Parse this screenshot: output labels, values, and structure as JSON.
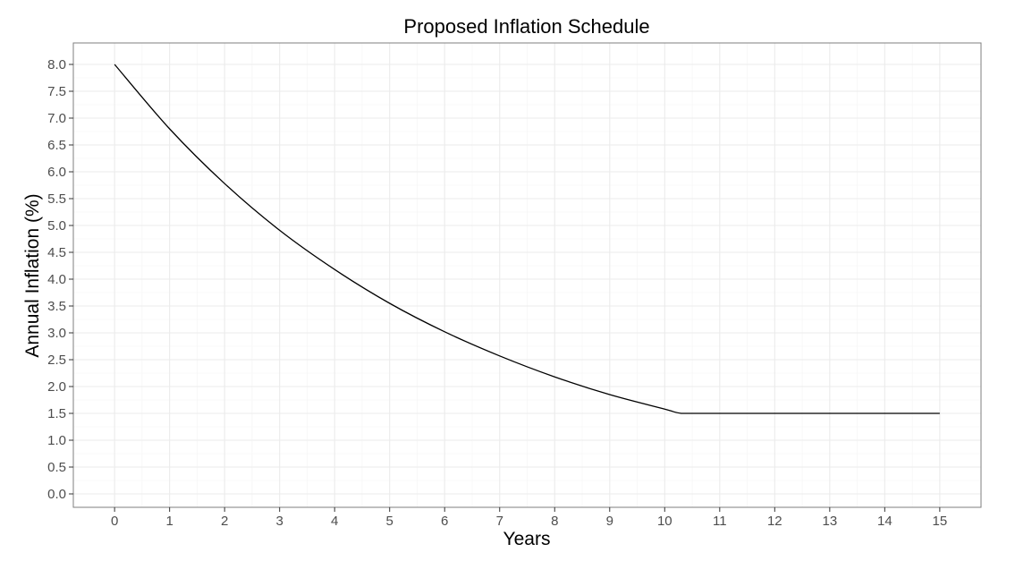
{
  "chart_data": {
    "type": "line",
    "title": "Proposed Inflation Schedule",
    "xlabel": "Years",
    "ylabel": "Annual Inflation (%)",
    "xlim": [
      -0.75,
      15.75
    ],
    "ylim": [
      -0.25,
      8.4
    ],
    "x_ticks": [
      0,
      1,
      2,
      3,
      4,
      5,
      6,
      7,
      8,
      9,
      10,
      11,
      12,
      13,
      14,
      15
    ],
    "x_tick_labels": [
      "0",
      "1",
      "2",
      "3",
      "4",
      "5",
      "6",
      "7",
      "8",
      "9",
      "10",
      "11",
      "12",
      "13",
      "14",
      "15"
    ],
    "y_ticks": [
      0,
      0.5,
      1,
      1.5,
      2,
      2.5,
      3,
      3.5,
      4,
      4.5,
      5,
      5.5,
      6,
      6.5,
      7,
      7.5,
      8
    ],
    "y_tick_labels": [
      "0.0",
      "0.5",
      "1.0",
      "1.5",
      "2.0",
      "2.5",
      "3.0",
      "3.5",
      "4.0",
      "4.5",
      "5.0",
      "5.5",
      "6.0",
      "6.5",
      "7.0",
      "7.5",
      "8.0"
    ],
    "grid": true,
    "legend": "none",
    "line_color": "#000000",
    "series": [
      {
        "x": [
          0,
          1,
          2,
          3,
          4,
          5,
          6,
          7,
          8,
          9,
          10,
          10.3,
          11,
          12,
          13,
          14,
          15
        ],
        "y": [
          8.0,
          6.8,
          5.78,
          4.91,
          4.18,
          3.55,
          3.02,
          2.57,
          2.18,
          1.85,
          1.58,
          1.5,
          1.5,
          1.5,
          1.5,
          1.5,
          1.5
        ]
      }
    ]
  }
}
